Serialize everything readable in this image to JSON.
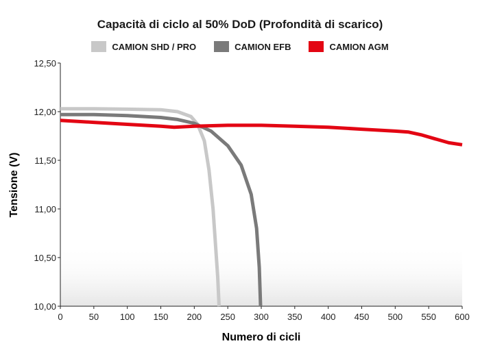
{
  "chart_data": {
    "type": "line",
    "title": "Capacità di ciclo al 50% DoD (Profondità di scarico)",
    "xlabel": "Numero di cicli",
    "ylabel": "Tensione (V)",
    "xlim": [
      0,
      600
    ],
    "ylim": [
      10.0,
      12.5
    ],
    "x_ticks": [
      "0",
      "50",
      "100",
      "150",
      "200",
      "250",
      "300",
      "350",
      "400",
      "450",
      "500",
      "550",
      "600"
    ],
    "y_ticks": [
      "10,00",
      "10,50",
      "11,00",
      "11,50",
      "12,00",
      "12,50"
    ],
    "grid": false,
    "legend_position": "top-center",
    "series": [
      {
        "name": "CAMION SHD / PRO",
        "color": "#c8c8c8",
        "points": [
          [
            0,
            12.03
          ],
          [
            50,
            12.03
          ],
          [
            100,
            12.025
          ],
          [
            150,
            12.02
          ],
          [
            175,
            12.0
          ],
          [
            195,
            11.95
          ],
          [
            205,
            11.87
          ],
          [
            215,
            11.7
          ],
          [
            222,
            11.4
          ],
          [
            228,
            11.0
          ],
          [
            232,
            10.6
          ],
          [
            235,
            10.3
          ],
          [
            237,
            10.0
          ]
        ]
      },
      {
        "name": "CAMION EFB",
        "color": "#7a7a7a",
        "points": [
          [
            0,
            11.97
          ],
          [
            50,
            11.97
          ],
          [
            100,
            11.96
          ],
          [
            150,
            11.94
          ],
          [
            175,
            11.92
          ],
          [
            200,
            11.88
          ],
          [
            225,
            11.8
          ],
          [
            250,
            11.65
          ],
          [
            270,
            11.45
          ],
          [
            285,
            11.15
          ],
          [
            293,
            10.8
          ],
          [
            297,
            10.4
          ],
          [
            299,
            10.0
          ]
        ]
      },
      {
        "name": "CAMION AGM",
        "color": "#e30613",
        "points": [
          [
            0,
            11.91
          ],
          [
            50,
            11.89
          ],
          [
            100,
            11.87
          ],
          [
            150,
            11.85
          ],
          [
            170,
            11.84
          ],
          [
            200,
            11.85
          ],
          [
            250,
            11.86
          ],
          [
            300,
            11.86
          ],
          [
            350,
            11.85
          ],
          [
            400,
            11.84
          ],
          [
            450,
            11.82
          ],
          [
            500,
            11.8
          ],
          [
            520,
            11.79
          ],
          [
            540,
            11.76
          ],
          [
            560,
            11.72
          ],
          [
            580,
            11.68
          ],
          [
            600,
            11.66
          ]
        ]
      }
    ]
  }
}
